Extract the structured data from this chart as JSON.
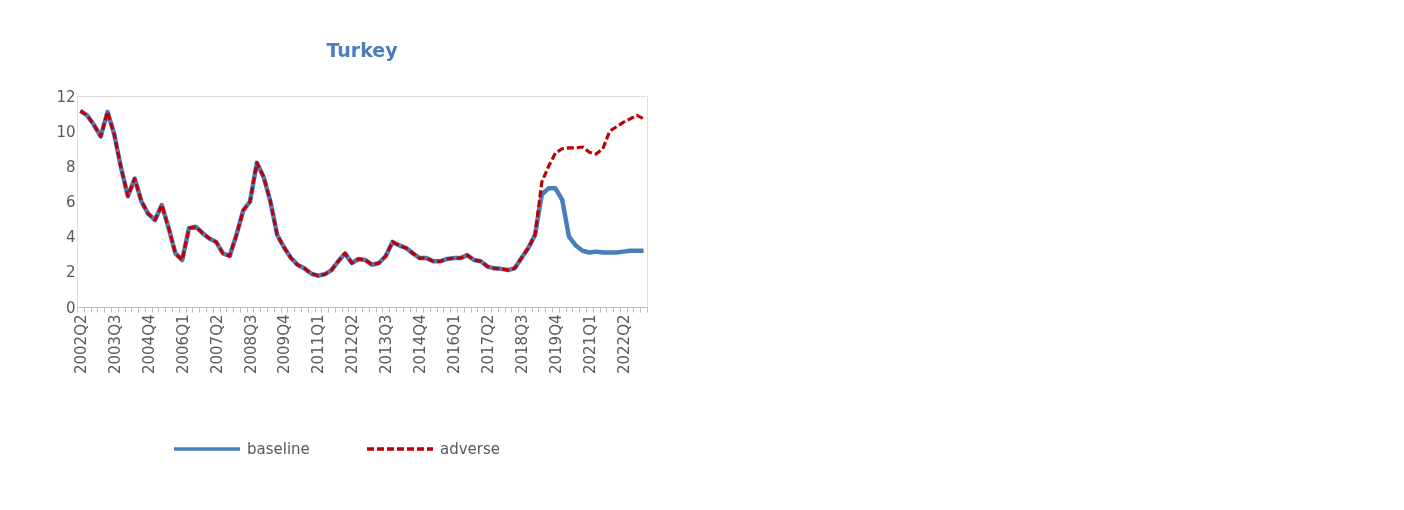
{
  "chart_data": {
    "type": "line",
    "title": "Turkey",
    "categories": [
      "2002Q2",
      null,
      null,
      null,
      null,
      "2003Q3",
      null,
      null,
      null,
      null,
      "2004Q4",
      null,
      null,
      null,
      null,
      "2006Q1",
      null,
      null,
      null,
      null,
      "2007Q2",
      null,
      null,
      null,
      null,
      "2008Q3",
      null,
      null,
      null,
      null,
      "2009Q4",
      null,
      null,
      null,
      null,
      "2011Q1",
      null,
      null,
      null,
      null,
      "2012Q2",
      null,
      null,
      null,
      null,
      "2013Q3",
      null,
      null,
      null,
      null,
      "2014Q4",
      null,
      null,
      null,
      null,
      "2016Q1",
      null,
      null,
      null,
      null,
      "2017Q2",
      null,
      null,
      null,
      null,
      "2018Q3",
      null,
      null,
      null,
      null,
      "2019Q4",
      null,
      null,
      null,
      null,
      "2021Q1",
      null,
      null,
      null,
      null,
      "2022Q2",
      null,
      null,
      null
    ],
    "series": [
      {
        "name": "baseline",
        "color": "#4a7ebb",
        "line_style": "solid",
        "values": [
          11.15,
          10.9,
          10.35,
          9.7,
          11.1,
          9.8,
          7.9,
          6.3,
          7.3,
          6.0,
          5.3,
          4.95,
          5.8,
          4.5,
          3.05,
          2.67,
          4.48,
          4.57,
          4.2,
          3.9,
          3.7,
          3.05,
          2.9,
          4.1,
          5.5,
          6.0,
          8.2,
          7.4,
          6.0,
          4.1,
          3.4,
          2.8,
          2.4,
          2.2,
          1.9,
          1.78,
          1.86,
          2.1,
          2.6,
          3.05,
          2.5,
          2.73,
          2.67,
          2.4,
          2.5,
          2.9,
          3.7,
          3.5,
          3.35,
          3.05,
          2.78,
          2.78,
          2.6,
          2.6,
          2.73,
          2.78,
          2.78,
          2.95,
          2.67,
          2.6,
          2.3,
          2.2,
          2.17,
          2.1,
          2.2,
          2.78,
          3.35,
          4.1,
          6.4,
          6.75,
          6.75,
          6.1,
          4.0,
          3.5,
          3.2,
          3.1,
          3.15,
          3.1,
          3.1,
          3.1,
          3.15,
          3.2,
          3.2,
          3.2
        ]
      },
      {
        "name": "adverse",
        "color": "#c00000",
        "line_style": "dashed",
        "values": [
          11.15,
          10.9,
          10.35,
          9.7,
          11.1,
          9.8,
          7.9,
          6.3,
          7.3,
          6.0,
          5.3,
          4.95,
          5.8,
          4.5,
          3.05,
          2.67,
          4.48,
          4.57,
          4.2,
          3.9,
          3.7,
          3.05,
          2.9,
          4.1,
          5.5,
          6.0,
          8.2,
          7.4,
          6.0,
          4.1,
          3.4,
          2.8,
          2.4,
          2.2,
          1.9,
          1.78,
          1.86,
          2.1,
          2.6,
          3.05,
          2.5,
          2.73,
          2.67,
          2.4,
          2.5,
          2.9,
          3.7,
          3.5,
          3.35,
          3.05,
          2.78,
          2.78,
          2.6,
          2.6,
          2.73,
          2.78,
          2.78,
          2.95,
          2.67,
          2.6,
          2.3,
          2.2,
          2.17,
          2.1,
          2.2,
          2.78,
          3.35,
          4.1,
          7.1,
          8.0,
          8.75,
          9.0,
          9.05,
          9.05,
          9.1,
          8.8,
          8.7,
          9.0,
          10.0,
          10.25,
          10.5,
          10.7,
          10.9,
          10.7
        ]
      }
    ],
    "ylim": [
      0,
      12
    ],
    "yticks": [
      0,
      2,
      4,
      6,
      8,
      10,
      12
    ],
    "grid": false,
    "legend": "bottom"
  }
}
